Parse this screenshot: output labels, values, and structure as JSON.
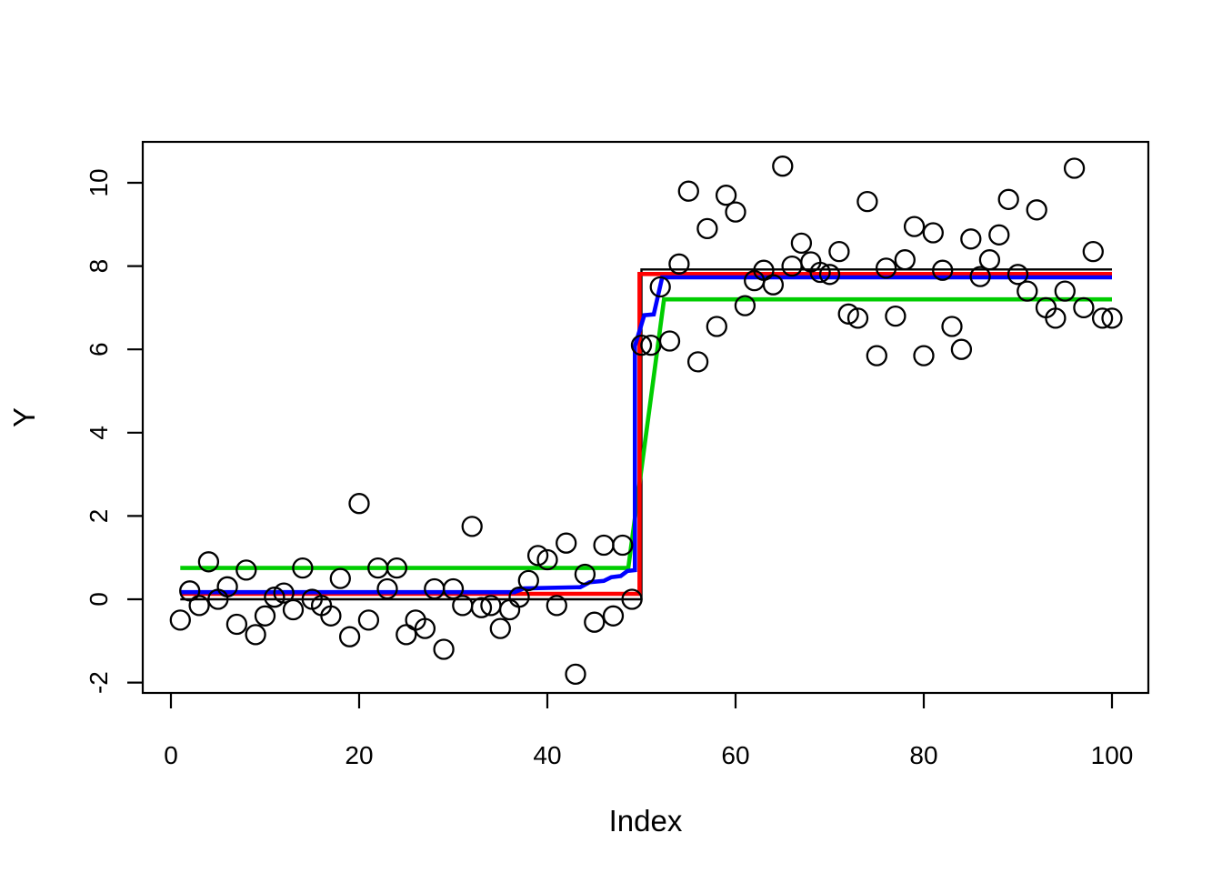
{
  "figure": {
    "background": "#ffffff",
    "plot_box_color": "#000000"
  },
  "chart_data": {
    "type": "scatter",
    "title": "",
    "xlabel": "Index",
    "ylabel": "Y",
    "x_ticks": [
      0,
      20,
      40,
      60,
      80,
      100
    ],
    "y_ticks": [
      -2,
      0,
      2,
      4,
      6,
      8,
      10
    ],
    "xlim": [
      -3,
      104
    ],
    "ylim": [
      -2.26,
      11.0
    ],
    "grid": false,
    "legend_position": "none",
    "marker": {
      "shape": "open-circle",
      "color": "#000000"
    },
    "points": {
      "x": [
        1,
        2,
        3,
        4,
        5,
        6,
        7,
        8,
        9,
        10,
        11,
        12,
        13,
        14,
        15,
        16,
        17,
        18,
        19,
        20,
        21,
        22,
        23,
        24,
        25,
        26,
        27,
        28,
        29,
        30,
        31,
        32,
        33,
        34,
        35,
        36,
        37,
        38,
        39,
        40,
        41,
        42,
        43,
        44,
        45,
        46,
        47,
        48,
        49,
        50,
        51,
        52,
        53,
        54,
        55,
        56,
        57,
        58,
        59,
        60,
        61,
        62,
        63,
        64,
        65,
        66,
        67,
        68,
        69,
        70,
        71,
        72,
        73,
        74,
        75,
        76,
        77,
        78,
        79,
        80,
        81,
        82,
        83,
        84,
        85,
        86,
        87,
        88,
        89,
        90,
        91,
        92,
        93,
        94,
        95,
        96,
        97,
        98,
        99,
        100
      ],
      "y": [
        -0.5,
        0.2,
        -0.15,
        0.9,
        0.0,
        0.3,
        -0.6,
        0.7,
        -0.85,
        -0.4,
        0.05,
        0.15,
        -0.25,
        0.75,
        0.0,
        -0.15,
        -0.4,
        0.5,
        -0.9,
        2.3,
        -0.5,
        0.75,
        0.25,
        0.75,
        -0.85,
        -0.5,
        -0.7,
        0.25,
        -1.2,
        0.25,
        -0.15,
        1.75,
        -0.2,
        -0.15,
        -0.7,
        -0.25,
        0.05,
        0.45,
        1.05,
        0.95,
        -0.15,
        1.35,
        -1.8,
        0.6,
        -0.55,
        1.3,
        -0.4,
        1.3,
        0.0,
        6.1,
        6.1,
        7.5,
        6.2,
        8.05,
        9.8,
        5.7,
        8.9,
        6.55,
        9.7,
        9.3,
        7.05,
        7.65,
        7.9,
        7.55,
        10.4,
        8.0,
        8.55,
        8.1,
        7.85,
        7.8,
        8.35,
        6.85,
        6.75,
        9.55,
        5.85,
        7.95,
        6.8,
        8.15,
        8.95,
        5.85,
        8.8,
        7.9,
        6.55,
        6.0,
        8.65,
        7.75,
        8.15,
        8.75,
        9.6,
        7.8,
        7.4,
        9.35,
        7.0,
        6.75,
        7.4,
        10.35,
        7.0,
        8.35,
        6.75,
        6.75
      ]
    },
    "series": [
      {
        "name": "true-mean-step-line",
        "color": "#000000",
        "width": 2.4,
        "path": [
          [
            1,
            0.0
          ],
          [
            50,
            0.0
          ],
          [
            50,
            7.92
          ],
          [
            100,
            7.92
          ]
        ]
      },
      {
        "name": "green-fit-line",
        "color": "#00CD00",
        "width": 4.6,
        "path": [
          [
            1,
            0.75
          ],
          [
            48.6,
            0.75
          ],
          [
            52.4,
            7.2
          ],
          [
            100,
            7.2
          ]
        ]
      },
      {
        "name": "red-fit-line",
        "color": "#FF0000",
        "width": 4.6,
        "path": [
          [
            1,
            0.13
          ],
          [
            49.8,
            0.13
          ],
          [
            49.8,
            7.81
          ],
          [
            100,
            7.81
          ]
        ]
      },
      {
        "name": "blue-fit-line",
        "color": "#0000FF",
        "width": 4.6,
        "path": [
          [
            1,
            0.17
          ],
          [
            36.5,
            0.17
          ],
          [
            37.5,
            0.26
          ],
          [
            43.5,
            0.29
          ],
          [
            44.5,
            0.41
          ],
          [
            46.0,
            0.44
          ],
          [
            46.8,
            0.53
          ],
          [
            47.8,
            0.56
          ],
          [
            48.5,
            0.68
          ],
          [
            49.3,
            0.7
          ],
          [
            49.3,
            6.08
          ],
          [
            50.3,
            6.82
          ],
          [
            51.3,
            6.84
          ],
          [
            52.2,
            7.73
          ],
          [
            100,
            7.73
          ]
        ]
      }
    ]
  }
}
